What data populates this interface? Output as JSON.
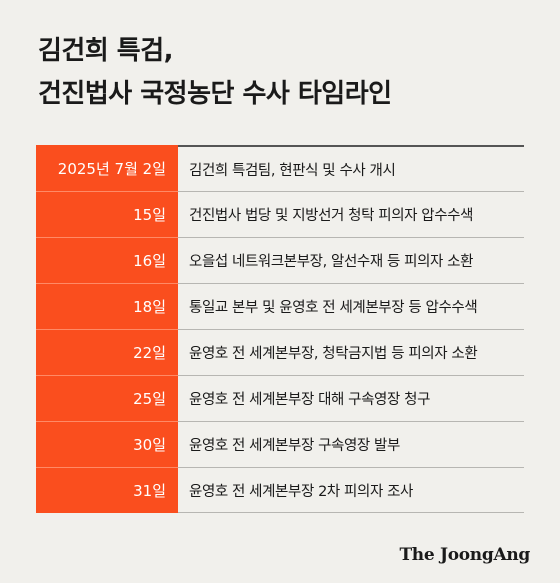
{
  "title": {
    "line1": "김건희 특검,",
    "line2": "건진법사 국정농단 수사 타임라인"
  },
  "timeline": [
    {
      "date": "2025년 7월 2일",
      "event": "김건희 특검팀, 현판식 및 수사 개시"
    },
    {
      "date": "15일",
      "event": "건진법사 법당 및 지방선거 청탁 피의자 압수수색"
    },
    {
      "date": "16일",
      "event": "오을섭 네트워크본부장, 알선수재 등 피의자 소환"
    },
    {
      "date": "18일",
      "event": "통일교 본부 및 윤영호 전 세계본부장 등 압수수색"
    },
    {
      "date": "22일",
      "event": "윤영호 전 세계본부장, 청탁금지법 등 피의자 소환"
    },
    {
      "date": "25일",
      "event": "윤영호 전 세계본부장 대해 구속영장 청구"
    },
    {
      "date": "30일",
      "event": "윤영호 전 세계본부장 구속영장 발부"
    },
    {
      "date": "31일",
      "event": "윤영호 전 세계본부장 2차 피의자 조사"
    }
  ],
  "brand": "The JoongAng",
  "colors": {
    "accent": "#fa4e1e",
    "background": "#f1f0ec",
    "text": "#1a1a1a"
  }
}
